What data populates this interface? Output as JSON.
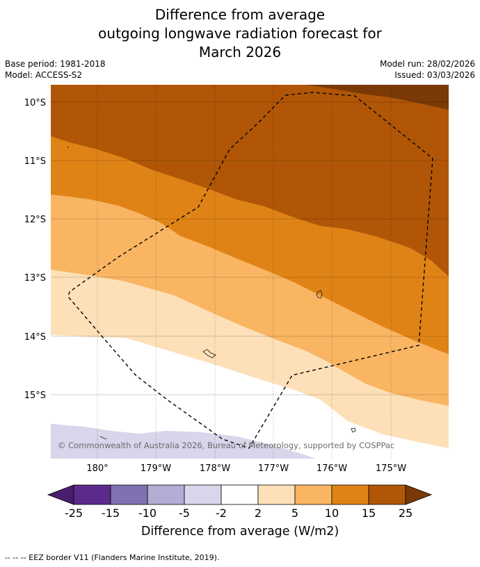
{
  "title": {
    "line1": "Difference from average",
    "line2": "outgoing longwave radiation forecast for",
    "line3": "March 2026"
  },
  "meta": {
    "base_period": "Base period: 1981-2018",
    "model": "Model: ACCESS-S2",
    "model_run": "Model run: 28/02/2026",
    "issued": "Issued: 03/03/2026"
  },
  "map": {
    "lat_labels": [
      "10°S",
      "11°S",
      "12°S",
      "13°S",
      "14°S",
      "15°S"
    ],
    "lon_labels": [
      "180°",
      "179°W",
      "178°W",
      "177°W",
      "176°W",
      "175°W"
    ],
    "copyright": "© Commonwealth of Australia 2026, Bureau of Meteorology, supported by COSPPac"
  },
  "legend": {
    "ticks": [
      "-25",
      "-15",
      "-10",
      "-5",
      "-2",
      "2",
      "5",
      "10",
      "15",
      "25"
    ],
    "colors": [
      "#4a1e6e",
      "#5c2a8c",
      "#8072b0",
      "#b3acd4",
      "#d7d6ea",
      "#ffffff",
      "#fde0b8",
      "#f9b562",
      "#e08316",
      "#b05606",
      "#7a3905"
    ],
    "title": "Difference from average (W/m2)"
  },
  "footer": "--  --  -- EEZ border V11 (Flanders Marine Institute, 2019)."
}
